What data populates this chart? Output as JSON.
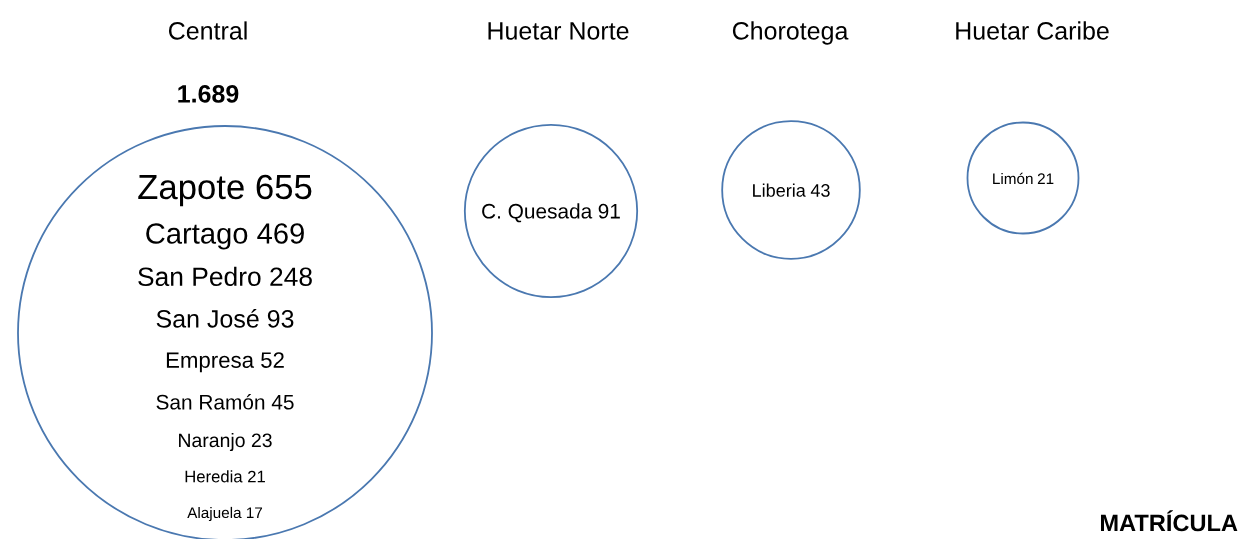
{
  "chart_data": {
    "type": "other",
    "categories": [
      "Central",
      "Huetar Norte",
      "Chorotega",
      "Huetar Caribe"
    ],
    "values": [
      1689,
      91,
      43,
      21
    ],
    "value_labels": [
      "1.689",
      "91",
      "43",
      "21"
    ],
    "color": "#4a78b0",
    "annotations": [
      {
        "text": "Zapote 655",
        "x": "Central"
      },
      {
        "text": "Cartago 469",
        "x": "Central"
      },
      {
        "text": "San Pedro 248",
        "x": "Central"
      },
      {
        "text": "San José 93",
        "x": "Central"
      },
      {
        "text": "Empresa 52",
        "x": "Central"
      },
      {
        "text": "San Ramón 45",
        "x": "Central"
      },
      {
        "text": "Naranjo 23",
        "x": "Central"
      },
      {
        "text": "Heredia 21",
        "x": "Central"
      },
      {
        "text": "Alajuela 17",
        "x": "Central"
      },
      {
        "text": "C. Quesada",
        "x": "Huetar Norte"
      },
      {
        "text": "Liberia",
        "x": "Chorotega"
      },
      {
        "text": "Limón",
        "x": "Huetar Caribe"
      },
      "MATRÍCULA"
    ]
  }
}
